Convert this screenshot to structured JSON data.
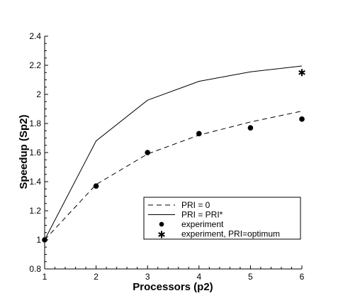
{
  "chart_data": {
    "type": "line",
    "title": "",
    "xlabel": "Processors (p2)",
    "ylabel": "Speedup (Sp2)",
    "xlim": [
      1,
      6
    ],
    "ylim": [
      0.8,
      2.4
    ],
    "x_ticks": [
      "1",
      "2",
      "3",
      "4",
      "5",
      "6"
    ],
    "y_ticks": [
      "0.8",
      "1",
      "1.2",
      "1.4",
      "1.6",
      "1.8",
      "2",
      "2.2",
      "2.4"
    ],
    "grid": false,
    "legend_position": "bottom-right",
    "series": [
      {
        "name": "PRI = 0",
        "style": "dashed",
        "x": [
          1,
          2,
          3,
          4,
          5,
          6
        ],
        "y": [
          1.0,
          1.38,
          1.59,
          1.72,
          1.81,
          1.885
        ]
      },
      {
        "name": "PRI = PRI*",
        "style": "solid",
        "x": [
          1,
          2,
          3,
          4,
          5,
          6
        ],
        "y": [
          1.0,
          1.68,
          1.96,
          2.09,
          2.155,
          2.195
        ]
      },
      {
        "name": "experiment",
        "style": "dot",
        "x": [
          1,
          2,
          3,
          4,
          5,
          6
        ],
        "y": [
          1.0,
          1.37,
          1.6,
          1.73,
          1.77,
          1.83
        ]
      },
      {
        "name": "experiment, PRI=optimum",
        "style": "star",
        "x": [
          6
        ],
        "y": [
          2.15
        ]
      }
    ]
  }
}
